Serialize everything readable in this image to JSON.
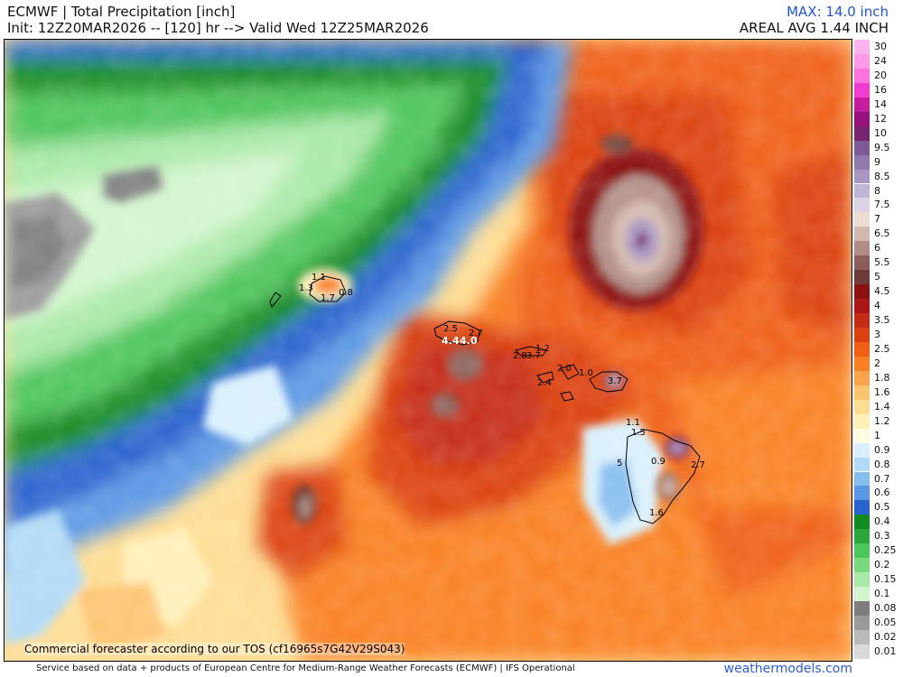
{
  "header": {
    "title": "ECMWF | Total Precipitation [inch]",
    "init": "Init: 12Z20MAR2026 -- [120] hr --> Valid Wed 12Z25MAR2026",
    "max": "MAX: 14.0 inch",
    "areal": "AREAL AVG 1.44 INCH"
  },
  "tos_note": "Commercial forecaster according to our TOS (cf16965s7G42V29S043)",
  "footer": "Service based on data + products of European Centre for Medium-Range Weather Forecasts (ECMWF) | IFS Operational",
  "watermark": "weathermodels.com",
  "legend": [
    {
      "label": "30",
      "color": "#ffb3ee"
    },
    {
      "label": "24",
      "color": "#ff99e8"
    },
    {
      "label": "20",
      "color": "#ff73df"
    },
    {
      "label": "16",
      "color": "#f23ccf"
    },
    {
      "label": "14",
      "color": "#c41e9e"
    },
    {
      "label": "12",
      "color": "#99107f"
    },
    {
      "label": "10",
      "color": "#78246e"
    },
    {
      "label": "9.5",
      "color": "#7d5a95"
    },
    {
      "label": "9",
      "color": "#9079ae"
    },
    {
      "label": "8.5",
      "color": "#a796c2"
    },
    {
      "label": "8",
      "color": "#c1b4d6"
    },
    {
      "label": "7.5",
      "color": "#ddd3e6"
    },
    {
      "label": "7",
      "color": "#ecdcd4"
    },
    {
      "label": "6.5",
      "color": "#d3b8ae"
    },
    {
      "label": "6",
      "color": "#b08c84"
    },
    {
      "label": "5.5",
      "color": "#8c5e57"
    },
    {
      "label": "5",
      "color": "#6e3c36"
    },
    {
      "label": "4.5",
      "color": "#8b1010"
    },
    {
      "label": "4",
      "color": "#ab1616"
    },
    {
      "label": "3.5",
      "color": "#c52a14"
    },
    {
      "label": "3",
      "color": "#dc4010"
    },
    {
      "label": "2.5",
      "color": "#ef5e12"
    },
    {
      "label": "2",
      "color": "#f98020"
    },
    {
      "label": "1.8",
      "color": "#fba34a"
    },
    {
      "label": "1.6",
      "color": "#fdc46f"
    },
    {
      "label": "1.4",
      "color": "#fedc92"
    },
    {
      "label": "1.2",
      "color": "#fff0b8"
    },
    {
      "label": "1",
      "color": "#fdfbe0"
    },
    {
      "label": "0.9",
      "color": "#d9f0fc"
    },
    {
      "label": "0.8",
      "color": "#b0daf6"
    },
    {
      "label": "0.7",
      "color": "#84bdee"
    },
    {
      "label": "0.6",
      "color": "#5a97e4"
    },
    {
      "label": "0.5",
      "color": "#2a63cf"
    },
    {
      "label": "0.4",
      "color": "#128a22"
    },
    {
      "label": "0.3",
      "color": "#2ba83a"
    },
    {
      "label": "0.25",
      "color": "#4cc55a"
    },
    {
      "label": "0.2",
      "color": "#78d97d"
    },
    {
      "label": "0.15",
      "color": "#a8e9a6"
    },
    {
      "label": "0.1",
      "color": "#d2f5cd"
    },
    {
      "label": "0.08",
      "color": "#7d7d7d"
    },
    {
      "label": "0.05",
      "color": "#9a9a9a"
    },
    {
      "label": "0.02",
      "color": "#bababa"
    },
    {
      "label": "0.01",
      "color": "#dadada"
    }
  ],
  "point_labels": [
    "1.1",
    "1.3",
    "1.7",
    "0.8",
    "2.5",
    "2.7",
    "4.4",
    "4.0",
    "2.8",
    "3.7",
    "1.2",
    "2.0",
    "1.0",
    "2.4",
    "3.7",
    "1.1",
    "1.5",
    "0.9",
    "5",
    "2.7",
    "1.6"
  ]
}
